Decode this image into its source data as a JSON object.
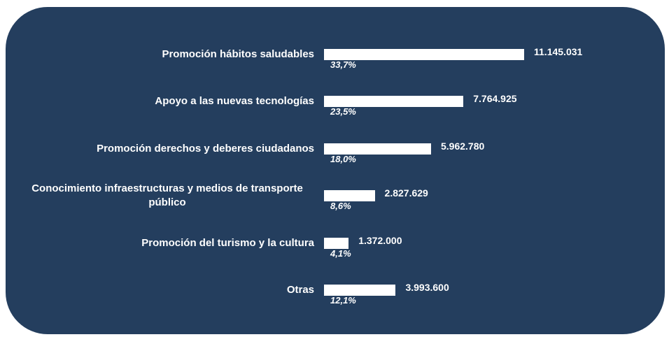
{
  "chart_data": {
    "type": "bar",
    "orientation": "horizontal",
    "categories": [
      "Promoción hábitos saludables",
      "Apoyo a las nuevas tecnologías",
      "Promoción derechos y deberes ciudadanos",
      "Conocimiento infraestructuras y medios de transporte público",
      "Promoción del turismo y la cultura",
      "Otras"
    ],
    "values": [
      11145031,
      7764925,
      5962780,
      2827629,
      1372000,
      3993600
    ],
    "value_labels": [
      "11.145.031",
      "7.764.925",
      "5.962.780",
      "2.827.629",
      "1.372.000",
      "3.993.600"
    ],
    "percent_labels": [
      "33,7%",
      "23,5%",
      "18,0%",
      "8,6%",
      "4,1%",
      "12,1%"
    ],
    "color": "#ffffff",
    "background": "#243e5e"
  }
}
